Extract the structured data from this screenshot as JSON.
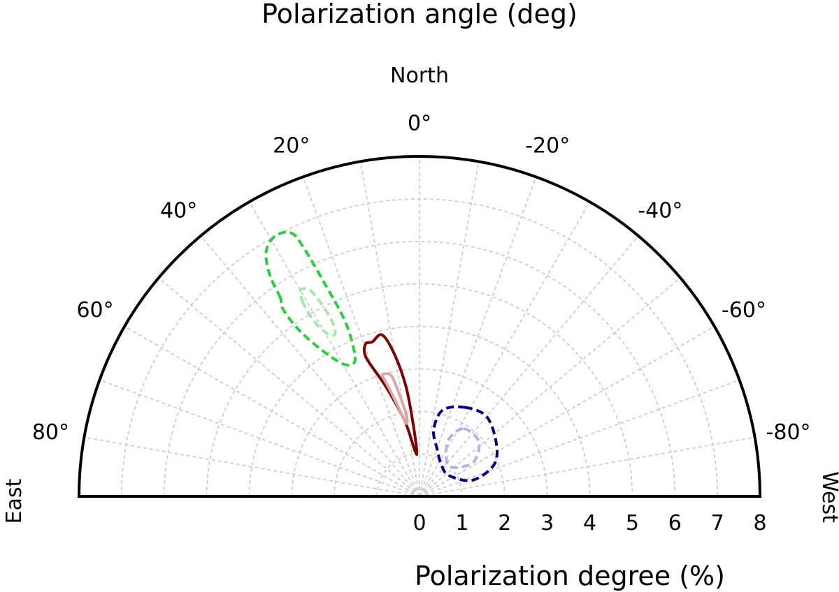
{
  "chart_data": {
    "type": "polar",
    "title": "Polarization angle (deg)",
    "xlabel": "Polarization degree (%)",
    "direction_labels": {
      "north": "North",
      "east": "East",
      "west": "West"
    },
    "radial_range": [
      0,
      8
    ],
    "radial_ticks": [
      0,
      1,
      2,
      3,
      4,
      5,
      6,
      7,
      8
    ],
    "radial_tick_labels": [
      "0",
      "1",
      "2",
      "3",
      "4",
      "5",
      "6",
      "7",
      "8"
    ],
    "angle_range_deg": [
      -90,
      90
    ],
    "angle_ticks": [
      80,
      60,
      40,
      20,
      0,
      -20,
      -40,
      -60,
      -80
    ],
    "angle_tick_labels": [
      "80°",
      "60°",
      "40°",
      "20°",
      "0°",
      "-20°",
      "-40°",
      "-60°",
      "-80°"
    ],
    "grid": true,
    "contours": [
      {
        "color": "#2ecc40",
        "style": "dashed",
        "points": [
          [
            5.7,
            35
          ],
          [
            6.3,
            34
          ],
          [
            6.8,
            32
          ],
          [
            7.0,
            29
          ],
          [
            6.9,
            26
          ],
          [
            6.5,
            25
          ],
          [
            5.5,
            24
          ],
          [
            4.5,
            23
          ],
          [
            3.8,
            24
          ],
          [
            3.5,
            26
          ],
          [
            3.6,
            30
          ],
          [
            4.2,
            34
          ],
          [
            4.9,
            36
          ],
          [
            5.5,
            36
          ]
        ]
      },
      {
        "color": "#a8e6b0",
        "style": "dashed",
        "points": [
          [
            5.3,
            31
          ],
          [
            5.6,
            30
          ],
          [
            5.5,
            28
          ],
          [
            5.1,
            27
          ],
          [
            4.6,
            26.5
          ],
          [
            4.3,
            27.5
          ],
          [
            4.4,
            29.5
          ],
          [
            4.8,
            31
          ]
        ]
      },
      {
        "color": "#7f0000",
        "style": "solid",
        "points": [
          [
            3.8,
            17
          ],
          [
            3.9,
            13
          ],
          [
            3.4,
            10
          ],
          [
            2.6,
            7
          ],
          [
            1.7,
            5
          ],
          [
            1.05,
            3.5
          ],
          [
            1.1,
            6
          ],
          [
            1.8,
            11
          ],
          [
            2.7,
            17
          ],
          [
            3.5,
            21
          ],
          [
            3.8,
            19.5
          ]
        ]
      },
      {
        "color": "#d9a8a8",
        "style": "solid",
        "points": [
          [
            3.0,
            16
          ],
          [
            2.9,
            13
          ],
          [
            2.4,
            11
          ],
          [
            1.9,
            9
          ],
          [
            1.75,
            10.5
          ],
          [
            2.1,
            13
          ],
          [
            2.6,
            15.5
          ],
          [
            2.95,
            17
          ]
        ]
      },
      {
        "color": "#000080",
        "style": "dashed",
        "points": [
          [
            2.35,
            -27
          ],
          [
            2.45,
            -40
          ],
          [
            2.2,
            -55
          ],
          [
            1.9,
            -67
          ],
          [
            1.3,
            -73
          ],
          [
            0.85,
            -55
          ],
          [
            0.9,
            -35
          ],
          [
            1.2,
            -20
          ],
          [
            1.6,
            -12
          ],
          [
            2.1,
            -15
          ]
        ]
      },
      {
        "color": "#b3b3e0",
        "style": "dashed",
        "points": [
          [
            1.9,
            -33
          ],
          [
            1.9,
            -47
          ],
          [
            1.55,
            -57
          ],
          [
            1.2,
            -55
          ],
          [
            1.0,
            -45
          ],
          [
            1.1,
            -35
          ],
          [
            1.5,
            -27
          ]
        ]
      }
    ]
  }
}
